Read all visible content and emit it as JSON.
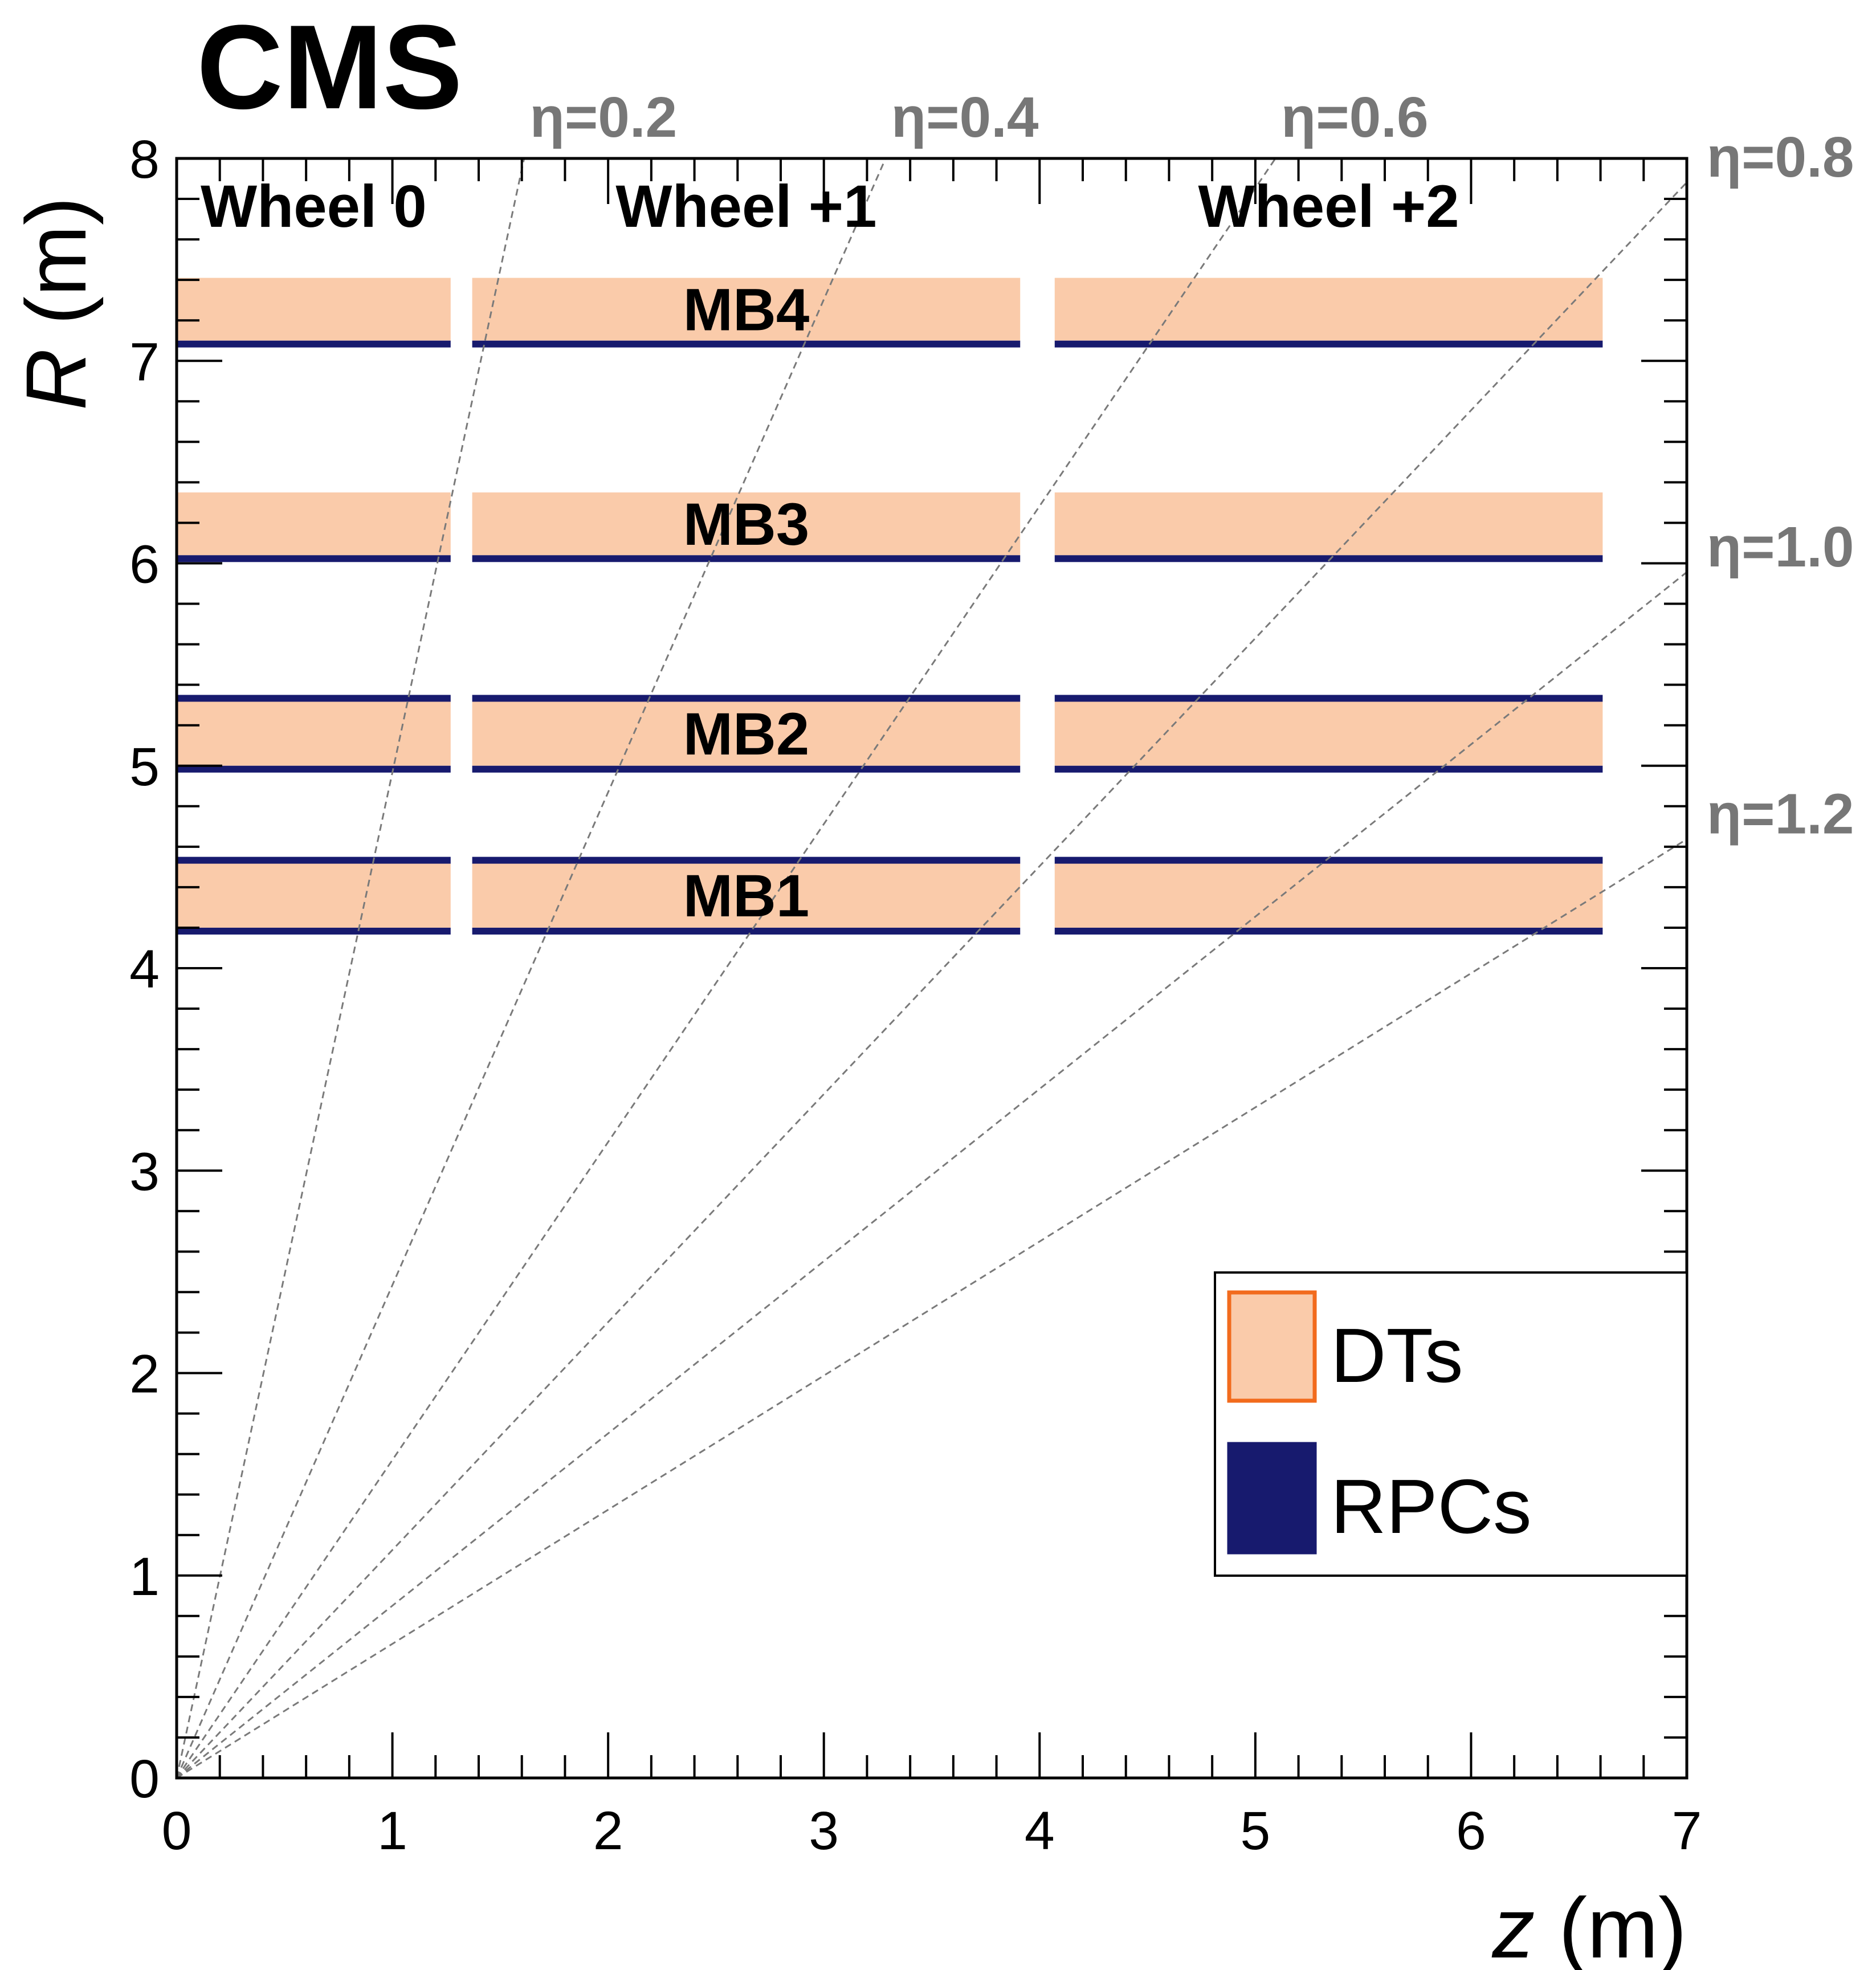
{
  "chart_data": {
    "type": "detector_layout",
    "experiment_label": "CMS",
    "xlabel_var": "z",
    "xlabel_unit": " (m)",
    "ylabel_var": "R",
    "ylabel_unit": " (m)",
    "xlim": [
      0,
      7
    ],
    "ylim": [
      0,
      8
    ],
    "x_ticks": [
      "0",
      "1",
      "2",
      "3",
      "4",
      "5",
      "6",
      "7"
    ],
    "y_ticks": [
      "0",
      "1",
      "2",
      "3",
      "4",
      "5",
      "6",
      "7",
      "8"
    ],
    "wheels": [
      {
        "label": "Wheel 0",
        "z_min": 0.0,
        "z_max": 1.27
      },
      {
        "label": "Wheel +1",
        "z_min": 1.37,
        "z_max": 3.91
      },
      {
        "label": "Wheel +2",
        "z_min": 4.07,
        "z_max": 6.61
      }
    ],
    "stations": [
      {
        "label": "MB1",
        "dt_r": [
          4.2,
          4.52
        ],
        "rpc_r": [
          [
            4.17,
            4.2
          ],
          [
            4.52,
            4.55
          ]
        ]
      },
      {
        "label": "MB2",
        "dt_r": [
          5.0,
          5.32
        ],
        "rpc_r": [
          [
            4.97,
            5.0
          ],
          [
            5.32,
            5.35
          ]
        ]
      },
      {
        "label": "MB3",
        "dt_r": [
          6.04,
          6.35
        ],
        "rpc_r": [
          [
            6.01,
            6.04
          ]
        ]
      },
      {
        "label": "MB4",
        "dt_r": [
          7.1,
          7.41
        ],
        "rpc_r": [
          [
            7.07,
            7.1
          ]
        ]
      }
    ],
    "eta_lines": [
      {
        "eta": 0.2,
        "label": "η=0.2"
      },
      {
        "eta": 0.4,
        "label": "η=0.4"
      },
      {
        "eta": 0.6,
        "label": "η=0.6"
      },
      {
        "eta": 0.8,
        "label": "η=0.8"
      },
      {
        "eta": 1.0,
        "label": "η=1.0"
      },
      {
        "eta": 1.2,
        "label": "η=1.2"
      }
    ],
    "legend": {
      "position": "bottom-right",
      "entries": [
        {
          "key": "dt",
          "label": "DTs",
          "fill": "#FACBAA",
          "stroke": "#F26B1D"
        },
        {
          "key": "rpc",
          "label": "RPCs",
          "fill": "#171A6E",
          "stroke": "#171A6E"
        }
      ]
    },
    "colors": {
      "dt_fill": "#FACBAA",
      "rpc_fill": "#171A6E",
      "eta_line": "#7a7a7a",
      "eta_label": "#777777",
      "axis": "#000000"
    }
  }
}
